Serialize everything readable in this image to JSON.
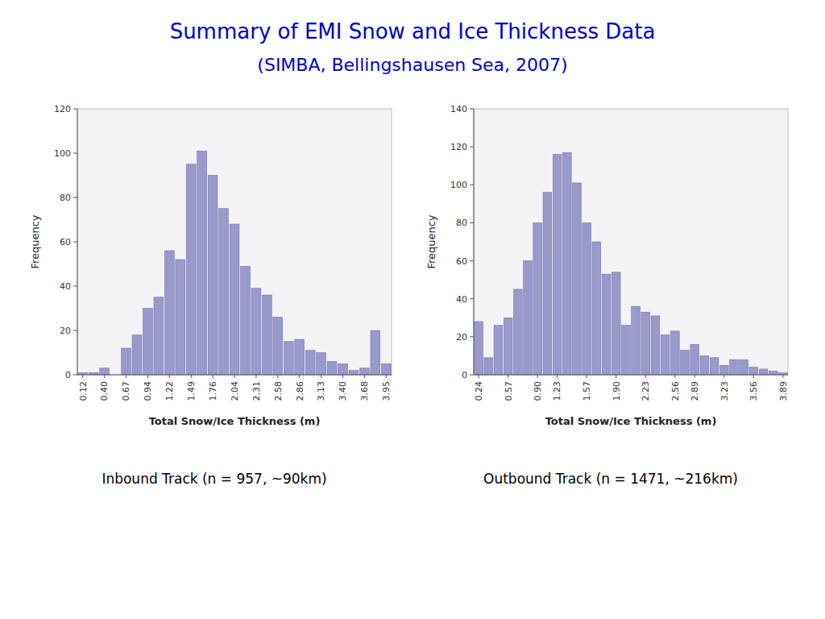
{
  "title": "Summary of EMI Snow and Ice Thickness Data",
  "subtitle": "(SIMBA, Bellingshausen Sea, 2007)",
  "chart_data": [
    {
      "type": "bar",
      "title": "Inbound Track (n = 957, ~90km)",
      "x_label": "Total Snow/Ice Thickness (m)",
      "y_label": "Frequency",
      "categories": [
        "0.12",
        null,
        "0.40",
        null,
        "0.67",
        null,
        "0.94",
        null,
        "1.22",
        null,
        "1.49",
        null,
        "1.76",
        null,
        "2.04",
        null,
        "2.31",
        null,
        "2.58",
        null,
        "2.86",
        null,
        "3.13",
        null,
        "3.40",
        null,
        "3.68",
        null,
        "3.95"
      ],
      "values": [
        1,
        1,
        3,
        0,
        12,
        18,
        30,
        35,
        56,
        52,
        95,
        101,
        90,
        75,
        68,
        49,
        39,
        36,
        26,
        15,
        16,
        11,
        10,
        6,
        5,
        2,
        3,
        20,
        5
      ],
      "color": "#9999CC",
      "ylim": [
        0,
        120
      ],
      "yticks": [
        0,
        20,
        40,
        60,
        80,
        100,
        120
      ],
      "grid": false
    },
    {
      "type": "bar",
      "title": "Outbound Track (n = 1471, ~216km)",
      "x_label": "Total Snow/Ice Thickness (m)",
      "y_label": "Frequency",
      "categories": [
        "0.24",
        null,
        null,
        "0.57",
        null,
        null,
        "0.90",
        null,
        "1.23",
        null,
        null,
        "1.57",
        null,
        null,
        "1.90",
        null,
        null,
        "2.23",
        null,
        null,
        "2.56",
        null,
        "2.89",
        null,
        null,
        "3.23",
        null,
        null,
        "3.56",
        null,
        null,
        "3.89"
      ],
      "values": [
        28,
        9,
        26,
        30,
        45,
        60,
        80,
        96,
        116,
        117,
        101,
        80,
        70,
        53,
        54,
        26,
        36,
        33,
        31,
        21,
        23,
        13,
        16,
        10,
        9,
        5,
        8,
        8,
        4,
        3,
        2,
        1
      ],
      "color": "#9999CC",
      "ylim": [
        0,
        140
      ],
      "yticks": [
        0,
        20,
        40,
        60,
        80,
        100,
        120,
        140
      ],
      "grid": false
    }
  ]
}
